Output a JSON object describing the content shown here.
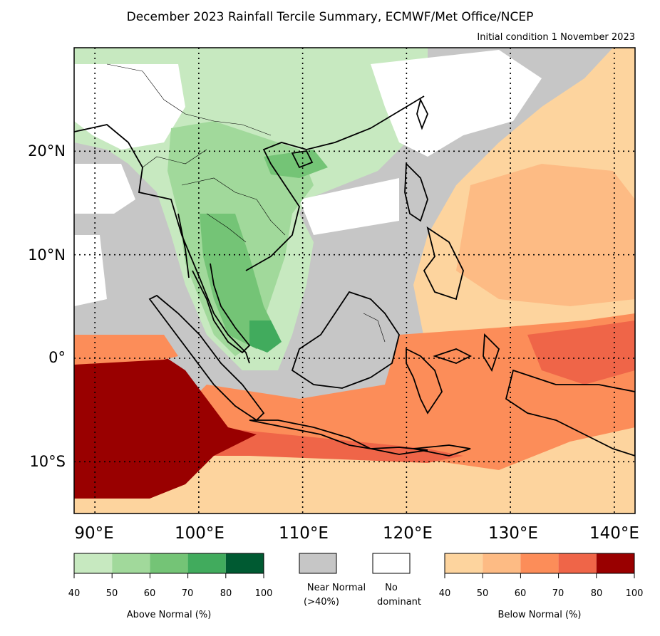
{
  "title": "December 2023 Rainfall Tercile Summary, ECMWF/Met Office/NCEP",
  "subtitle": "Initial condition 1 November 2023",
  "lat_labels": [
    "20°N",
    "10°N",
    "0°",
    "10°S"
  ],
  "lon_labels": [
    "90°E",
    "100°E",
    "110°E",
    "120°E",
    "130°E",
    "140°E"
  ],
  "legend": {
    "above": {
      "caption": "Above Normal (%)",
      "ticks": [
        "40",
        "50",
        "60",
        "70",
        "80",
        "100"
      ],
      "colors": [
        "#c7e9c0",
        "#a1d99b",
        "#74c476",
        "#41ab5d",
        "#005a32"
      ]
    },
    "near_normal": {
      "caption_line1": "Near Normal",
      "caption_line2": "(>40%)",
      "color": "#c6c6c6"
    },
    "no_dominant": {
      "caption_line1": "No",
      "caption_line2": "dominant",
      "color": "#ffffff"
    },
    "below": {
      "caption": "Below Normal (%)",
      "ticks": [
        "40",
        "50",
        "60",
        "70",
        "80",
        "100"
      ],
      "colors": [
        "#fdd49e",
        "#fdbb84",
        "#fc8d59",
        "#ef6548",
        "#990000"
      ]
    }
  },
  "map_extent": {
    "lon_min": 88,
    "lon_max": 142,
    "lat_min": -15,
    "lat_max": 30
  },
  "gridlines": {
    "lons": [
      90,
      100,
      110,
      120,
      130,
      140
    ],
    "lats": [
      20,
      10,
      0,
      -10
    ]
  }
}
